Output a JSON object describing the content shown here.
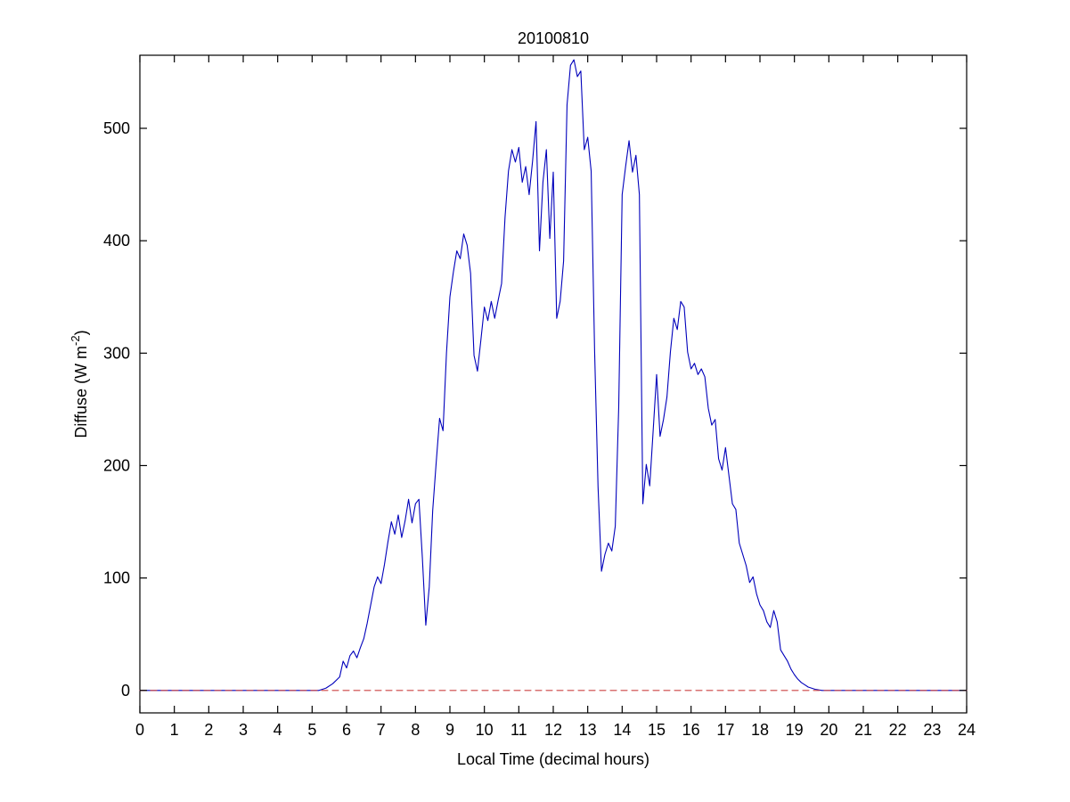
{
  "chart_data": {
    "type": "line",
    "title": "20100810",
    "xlabel": "Local Time (decimal hours)",
    "ylabel": "Diffuse (W m^-2)",
    "ylabel_parts": {
      "pre": "Diffuse (W m",
      "sup": "-2",
      "post": ")"
    },
    "xlim": [
      0,
      24
    ],
    "ylim": [
      -20,
      565
    ],
    "xticks": [
      0,
      1,
      2,
      3,
      4,
      5,
      6,
      7,
      8,
      9,
      10,
      11,
      12,
      13,
      14,
      15,
      16,
      17,
      18,
      19,
      20,
      21,
      22,
      23,
      24
    ],
    "yticks": [
      0,
      100,
      200,
      300,
      400,
      500
    ],
    "grid": false,
    "legend": "none",
    "axes_color": "#000000",
    "background_color": "#ffffff",
    "series": [
      {
        "name": "diffuse-irradiance",
        "color": "#0000BB",
        "style": "solid",
        "points": [
          [
            0,
            0
          ],
          [
            0.5,
            0
          ],
          [
            1,
            0
          ],
          [
            1.5,
            0
          ],
          [
            2,
            0
          ],
          [
            2.5,
            0
          ],
          [
            3,
            0
          ],
          [
            3.5,
            0
          ],
          [
            4,
            0
          ],
          [
            4.5,
            0
          ],
          [
            5,
            0
          ],
          [
            5.2,
            0
          ],
          [
            5.4,
            2
          ],
          [
            5.6,
            6
          ],
          [
            5.8,
            12
          ],
          [
            5.9,
            26
          ],
          [
            6.0,
            20
          ],
          [
            6.1,
            31
          ],
          [
            6.2,
            35
          ],
          [
            6.3,
            29
          ],
          [
            6.4,
            38
          ],
          [
            6.5,
            46
          ],
          [
            6.6,
            60
          ],
          [
            6.7,
            76
          ],
          [
            6.8,
            92
          ],
          [
            6.9,
            101
          ],
          [
            7.0,
            95
          ],
          [
            7.1,
            112
          ],
          [
            7.2,
            132
          ],
          [
            7.3,
            150
          ],
          [
            7.4,
            139
          ],
          [
            7.5,
            156
          ],
          [
            7.6,
            136
          ],
          [
            7.7,
            151
          ],
          [
            7.8,
            170
          ],
          [
            7.9,
            149
          ],
          [
            8.0,
            166
          ],
          [
            8.1,
            170
          ],
          [
            8.2,
            118
          ],
          [
            8.3,
            58
          ],
          [
            8.4,
            92
          ],
          [
            8.5,
            160
          ],
          [
            8.6,
            202
          ],
          [
            8.7,
            242
          ],
          [
            8.8,
            231
          ],
          [
            8.9,
            300
          ],
          [
            9.0,
            350
          ],
          [
            9.1,
            372
          ],
          [
            9.2,
            391
          ],
          [
            9.3,
            384
          ],
          [
            9.4,
            406
          ],
          [
            9.5,
            396
          ],
          [
            9.6,
            371
          ],
          [
            9.7,
            298
          ],
          [
            9.8,
            284
          ],
          [
            9.9,
            312
          ],
          [
            10.0,
            341
          ],
          [
            10.1,
            329
          ],
          [
            10.2,
            346
          ],
          [
            10.3,
            331
          ],
          [
            10.4,
            347
          ],
          [
            10.5,
            362
          ],
          [
            10.6,
            421
          ],
          [
            10.7,
            462
          ],
          [
            10.8,
            481
          ],
          [
            10.9,
            470
          ],
          [
            11.0,
            483
          ],
          [
            11.1,
            452
          ],
          [
            11.2,
            466
          ],
          [
            11.3,
            441
          ],
          [
            11.4,
            471
          ],
          [
            11.5,
            506
          ],
          [
            11.6,
            391
          ],
          [
            11.7,
            452
          ],
          [
            11.8,
            481
          ],
          [
            11.9,
            402
          ],
          [
            12.0,
            461
          ],
          [
            12.1,
            331
          ],
          [
            12.2,
            346
          ],
          [
            12.3,
            382
          ],
          [
            12.4,
            521
          ],
          [
            12.5,
            556
          ],
          [
            12.6,
            561
          ],
          [
            12.7,
            546
          ],
          [
            12.8,
            551
          ],
          [
            12.9,
            481
          ],
          [
            13.0,
            492
          ],
          [
            13.1,
            462
          ],
          [
            13.2,
            302
          ],
          [
            13.3,
            181
          ],
          [
            13.4,
            106
          ],
          [
            13.5,
            121
          ],
          [
            13.6,
            131
          ],
          [
            13.7,
            124
          ],
          [
            13.8,
            146
          ],
          [
            13.9,
            252
          ],
          [
            14.0,
            441
          ],
          [
            14.1,
            466
          ],
          [
            14.2,
            489
          ],
          [
            14.3,
            461
          ],
          [
            14.4,
            476
          ],
          [
            14.5,
            441
          ],
          [
            14.6,
            166
          ],
          [
            14.7,
            201
          ],
          [
            14.8,
            182
          ],
          [
            14.9,
            231
          ],
          [
            15.0,
            281
          ],
          [
            15.1,
            226
          ],
          [
            15.2,
            241
          ],
          [
            15.3,
            261
          ],
          [
            15.4,
            301
          ],
          [
            15.5,
            331
          ],
          [
            15.6,
            321
          ],
          [
            15.7,
            346
          ],
          [
            15.8,
            341
          ],
          [
            15.9,
            301
          ],
          [
            16.0,
            286
          ],
          [
            16.1,
            291
          ],
          [
            16.2,
            281
          ],
          [
            16.3,
            286
          ],
          [
            16.4,
            279
          ],
          [
            16.5,
            251
          ],
          [
            16.6,
            236
          ],
          [
            16.7,
            241
          ],
          [
            16.8,
            206
          ],
          [
            16.9,
            196
          ],
          [
            17.0,
            216
          ],
          [
            17.1,
            191
          ],
          [
            17.2,
            166
          ],
          [
            17.3,
            161
          ],
          [
            17.4,
            131
          ],
          [
            17.5,
            121
          ],
          [
            17.6,
            111
          ],
          [
            17.7,
            96
          ],
          [
            17.8,
            101
          ],
          [
            17.9,
            86
          ],
          [
            18.0,
            76
          ],
          [
            18.1,
            71
          ],
          [
            18.2,
            61
          ],
          [
            18.3,
            56
          ],
          [
            18.4,
            71
          ],
          [
            18.5,
            61
          ],
          [
            18.6,
            36
          ],
          [
            18.7,
            31
          ],
          [
            18.8,
            26
          ],
          [
            18.9,
            19
          ],
          [
            19.0,
            14
          ],
          [
            19.1,
            10
          ],
          [
            19.2,
            7
          ],
          [
            19.3,
            5
          ],
          [
            19.4,
            3
          ],
          [
            19.5,
            2
          ],
          [
            19.6,
            1
          ],
          [
            19.8,
            0
          ],
          [
            20.0,
            0
          ],
          [
            20.5,
            0
          ],
          [
            21,
            0
          ],
          [
            21.5,
            0
          ],
          [
            22,
            0
          ],
          [
            22.5,
            0
          ],
          [
            23,
            0
          ],
          [
            23.5,
            0
          ],
          [
            24,
            0
          ]
        ]
      },
      {
        "name": "zero-reference-line",
        "color": "#CC4444",
        "style": "dashed",
        "points": [
          [
            0,
            0
          ],
          [
            24,
            0
          ]
        ]
      }
    ]
  }
}
